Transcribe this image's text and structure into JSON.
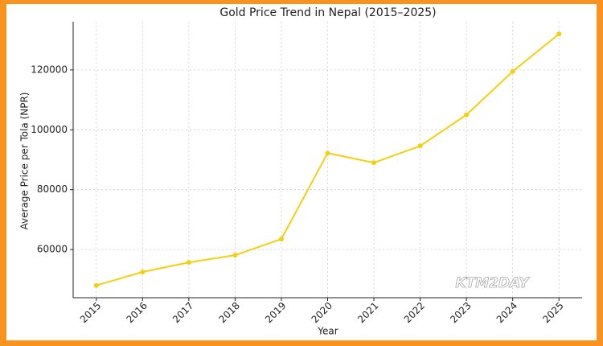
{
  "chart_data": {
    "type": "line",
    "title": "Gold Price Trend in Nepal (2015–2025)",
    "x_label": "Year",
    "y_label": "Average Price per Tola (NPR)",
    "x": [
      2015,
      2016,
      2017,
      2018,
      2019,
      2020,
      2021,
      2022,
      2023,
      2024,
      2025
    ],
    "series": [
      {
        "name": "Average Price per Tola (NPR)",
        "color": "#f5cf0f",
        "values": [
          48000,
          52500,
          55700,
          58100,
          63500,
          92200,
          89000,
          94600,
          105000,
          119500,
          132000
        ]
      }
    ],
    "xlim": [
      2014.5,
      2025.5
    ],
    "xticks": [
      2015,
      2016,
      2017,
      2018,
      2019,
      2020,
      2021,
      2022,
      2023,
      2024,
      2025
    ],
    "ylim": [
      43900,
      136100
    ],
    "yticks": [
      60000,
      80000,
      100000,
      120000
    ],
    "grid": true,
    "watermark": "KTM2DAY"
  }
}
